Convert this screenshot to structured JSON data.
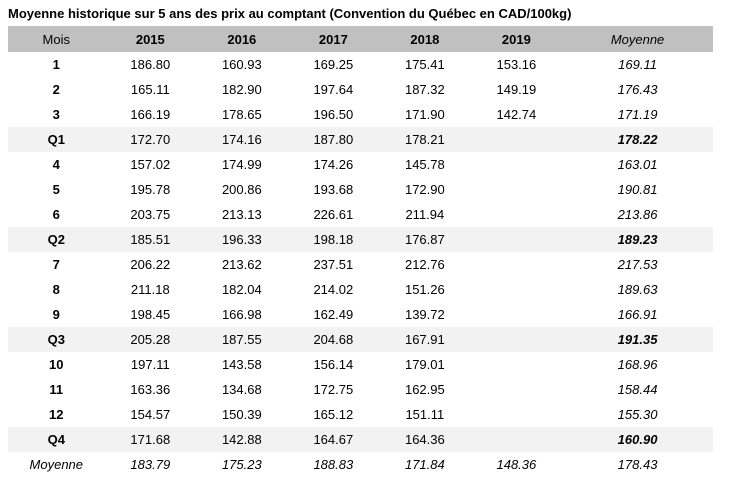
{
  "title": "Moyenne historique sur 5 ans des prix au comptant (Convention du Québec en CAD/100kg)",
  "colors": {
    "header_bg": "#c0c0c0",
    "quarter_row_bg": "#f2f2f2",
    "text": "#000000",
    "page_bg": "#ffffff"
  },
  "table": {
    "columns": [
      "Mois",
      "2015",
      "2016",
      "2017",
      "2018",
      "2019",
      "Moyenne"
    ],
    "rows": [
      {
        "type": "month",
        "cells": [
          "1",
          "186.80",
          "160.93",
          "169.25",
          "175.41",
          "153.16",
          "169.11"
        ]
      },
      {
        "type": "month",
        "cells": [
          "2",
          "165.11",
          "182.90",
          "197.64",
          "187.32",
          "149.19",
          "176.43"
        ]
      },
      {
        "type": "month",
        "cells": [
          "3",
          "166.19",
          "178.65",
          "196.50",
          "171.90",
          "142.74",
          "171.19"
        ]
      },
      {
        "type": "quarter",
        "cells": [
          "Q1",
          "172.70",
          "174.16",
          "187.80",
          "178.21",
          "",
          "178.22"
        ]
      },
      {
        "type": "month",
        "cells": [
          "4",
          "157.02",
          "174.99",
          "174.26",
          "145.78",
          "",
          "163.01"
        ]
      },
      {
        "type": "month",
        "cells": [
          "5",
          "195.78",
          "200.86",
          "193.68",
          "172.90",
          "",
          "190.81"
        ]
      },
      {
        "type": "month",
        "cells": [
          "6",
          "203.75",
          "213.13",
          "226.61",
          "211.94",
          "",
          "213.86"
        ]
      },
      {
        "type": "quarter",
        "cells": [
          "Q2",
          "185.51",
          "196.33",
          "198.18",
          "176.87",
          "",
          "189.23"
        ]
      },
      {
        "type": "month",
        "cells": [
          "7",
          "206.22",
          "213.62",
          "237.51",
          "212.76",
          "",
          "217.53"
        ]
      },
      {
        "type": "month",
        "cells": [
          "8",
          "211.18",
          "182.04",
          "214.02",
          "151.26",
          "",
          "189.63"
        ]
      },
      {
        "type": "month",
        "cells": [
          "9",
          "198.45",
          "166.98",
          "162.49",
          "139.72",
          "",
          "166.91"
        ]
      },
      {
        "type": "quarter",
        "cells": [
          "Q3",
          "205.28",
          "187.55",
          "204.68",
          "167.91",
          "",
          "191.35"
        ]
      },
      {
        "type": "month",
        "cells": [
          "10",
          "197.11",
          "143.58",
          "156.14",
          "179.01",
          "",
          "168.96"
        ]
      },
      {
        "type": "month",
        "cells": [
          "11",
          "163.36",
          "134.68",
          "172.75",
          "162.95",
          "",
          "158.44"
        ]
      },
      {
        "type": "month",
        "cells": [
          "12",
          "154.57",
          "150.39",
          "165.12",
          "151.11",
          "",
          "155.30"
        ]
      },
      {
        "type": "quarter",
        "cells": [
          "Q4",
          "171.68",
          "142.88",
          "164.67",
          "164.36",
          "",
          "160.90"
        ]
      },
      {
        "type": "total",
        "cells": [
          "Moyenne",
          "183.79",
          "175.23",
          "188.83",
          "171.84",
          "148.36",
          "178.43"
        ]
      }
    ]
  }
}
